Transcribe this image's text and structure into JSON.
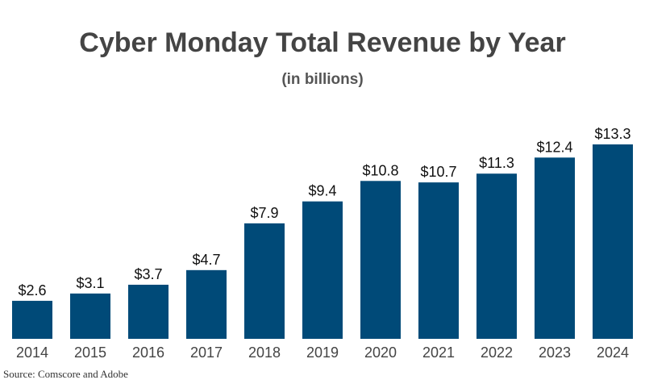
{
  "chart_data": {
    "type": "bar",
    "title": "Cyber Monday Total Revenue by Year",
    "subtitle": "(in billions)",
    "categories": [
      "2014",
      "2015",
      "2016",
      "2017",
      "2018",
      "2019",
      "2020",
      "2021",
      "2022",
      "2023",
      "2024"
    ],
    "values": [
      2.6,
      3.1,
      3.7,
      4.7,
      7.9,
      9.4,
      10.8,
      10.7,
      11.3,
      12.4,
      13.3
    ],
    "data_labels": [
      "$2.6",
      "$3.1",
      "$3.7",
      "$4.7",
      "$7.9",
      "$9.4",
      "$10.8",
      "$10.7",
      "$11.3",
      "$12.4",
      "$13.3"
    ],
    "xlabel": "",
    "ylabel": "",
    "ylim": [
      0,
      13.3
    ],
    "grid": false,
    "bar_color": "#004a78",
    "source": "Source: Comscore and Adobe"
  }
}
